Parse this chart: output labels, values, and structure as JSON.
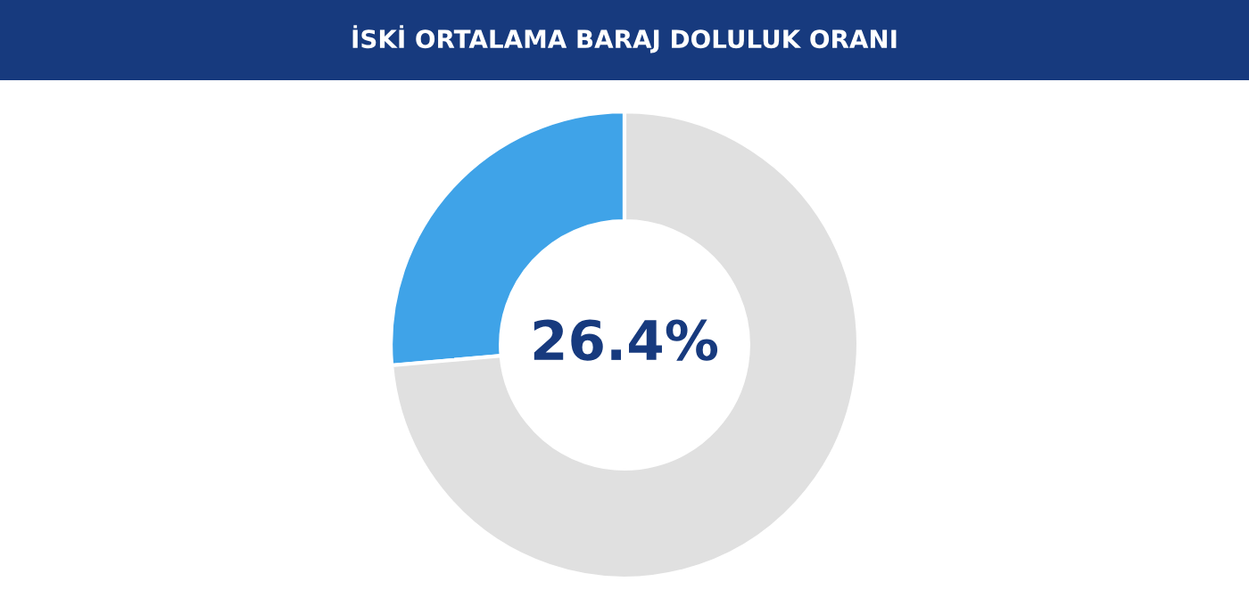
{
  "chart_data": {
    "type": "donut",
    "title": "İSKİ ORTALAMA BARAJ DOLULUK ORANI",
    "categories": [
      null,
      null
    ],
    "values": [
      26.4,
      73.6
    ],
    "colors": [
      "#3fa3e8",
      "#e0e0e0"
    ],
    "annotations": [
      "26.4%"
    ]
  }
}
